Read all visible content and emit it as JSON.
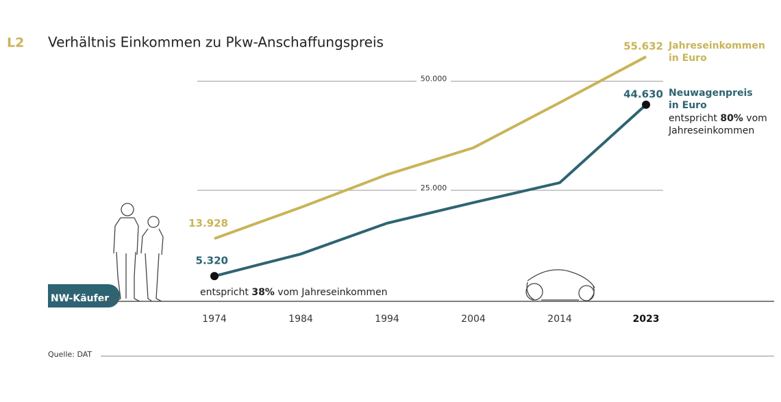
{
  "chart_data": {
    "type": "line",
    "chart_id": "L2",
    "title": "Verhältnis Einkommen zu Pkw-Anschaffungspreis",
    "categories": [
      "1974",
      "1984",
      "1994",
      "2004",
      "2014",
      "2023"
    ],
    "series": [
      {
        "name": "Jahreseinkommen in Euro",
        "color": "#c9b458",
        "values": [
          13928,
          21070,
          28600,
          34750,
          45100,
          55632
        ],
        "value_labels": [
          "13.928",
          null,
          null,
          null,
          null,
          "55.632"
        ]
      },
      {
        "name": "Neuwagenpreis in Euro",
        "color": "#2e6472",
        "values": [
          5320,
          10380,
          17450,
          22170,
          26730,
          44630
        ],
        "value_labels": [
          "5.320",
          null,
          null,
          null,
          null,
          "44.630"
        ]
      }
    ],
    "ylim": [
      0,
      60000
    ],
    "yticks": [
      {
        "value": 25000,
        "label": "25.000"
      },
      {
        "value": 50000,
        "label": "50.000"
      }
    ],
    "grid": true,
    "annotations": [
      {
        "before": "entspricht",
        "highlight": "38%",
        "after": "vom Jahreseinkommen"
      },
      {
        "before": "entspricht",
        "highlight": "80%",
        "after": "vom Jahreseinkommen"
      }
    ],
    "badge": "NW-Käufer",
    "source": "Quelle: DAT"
  }
}
